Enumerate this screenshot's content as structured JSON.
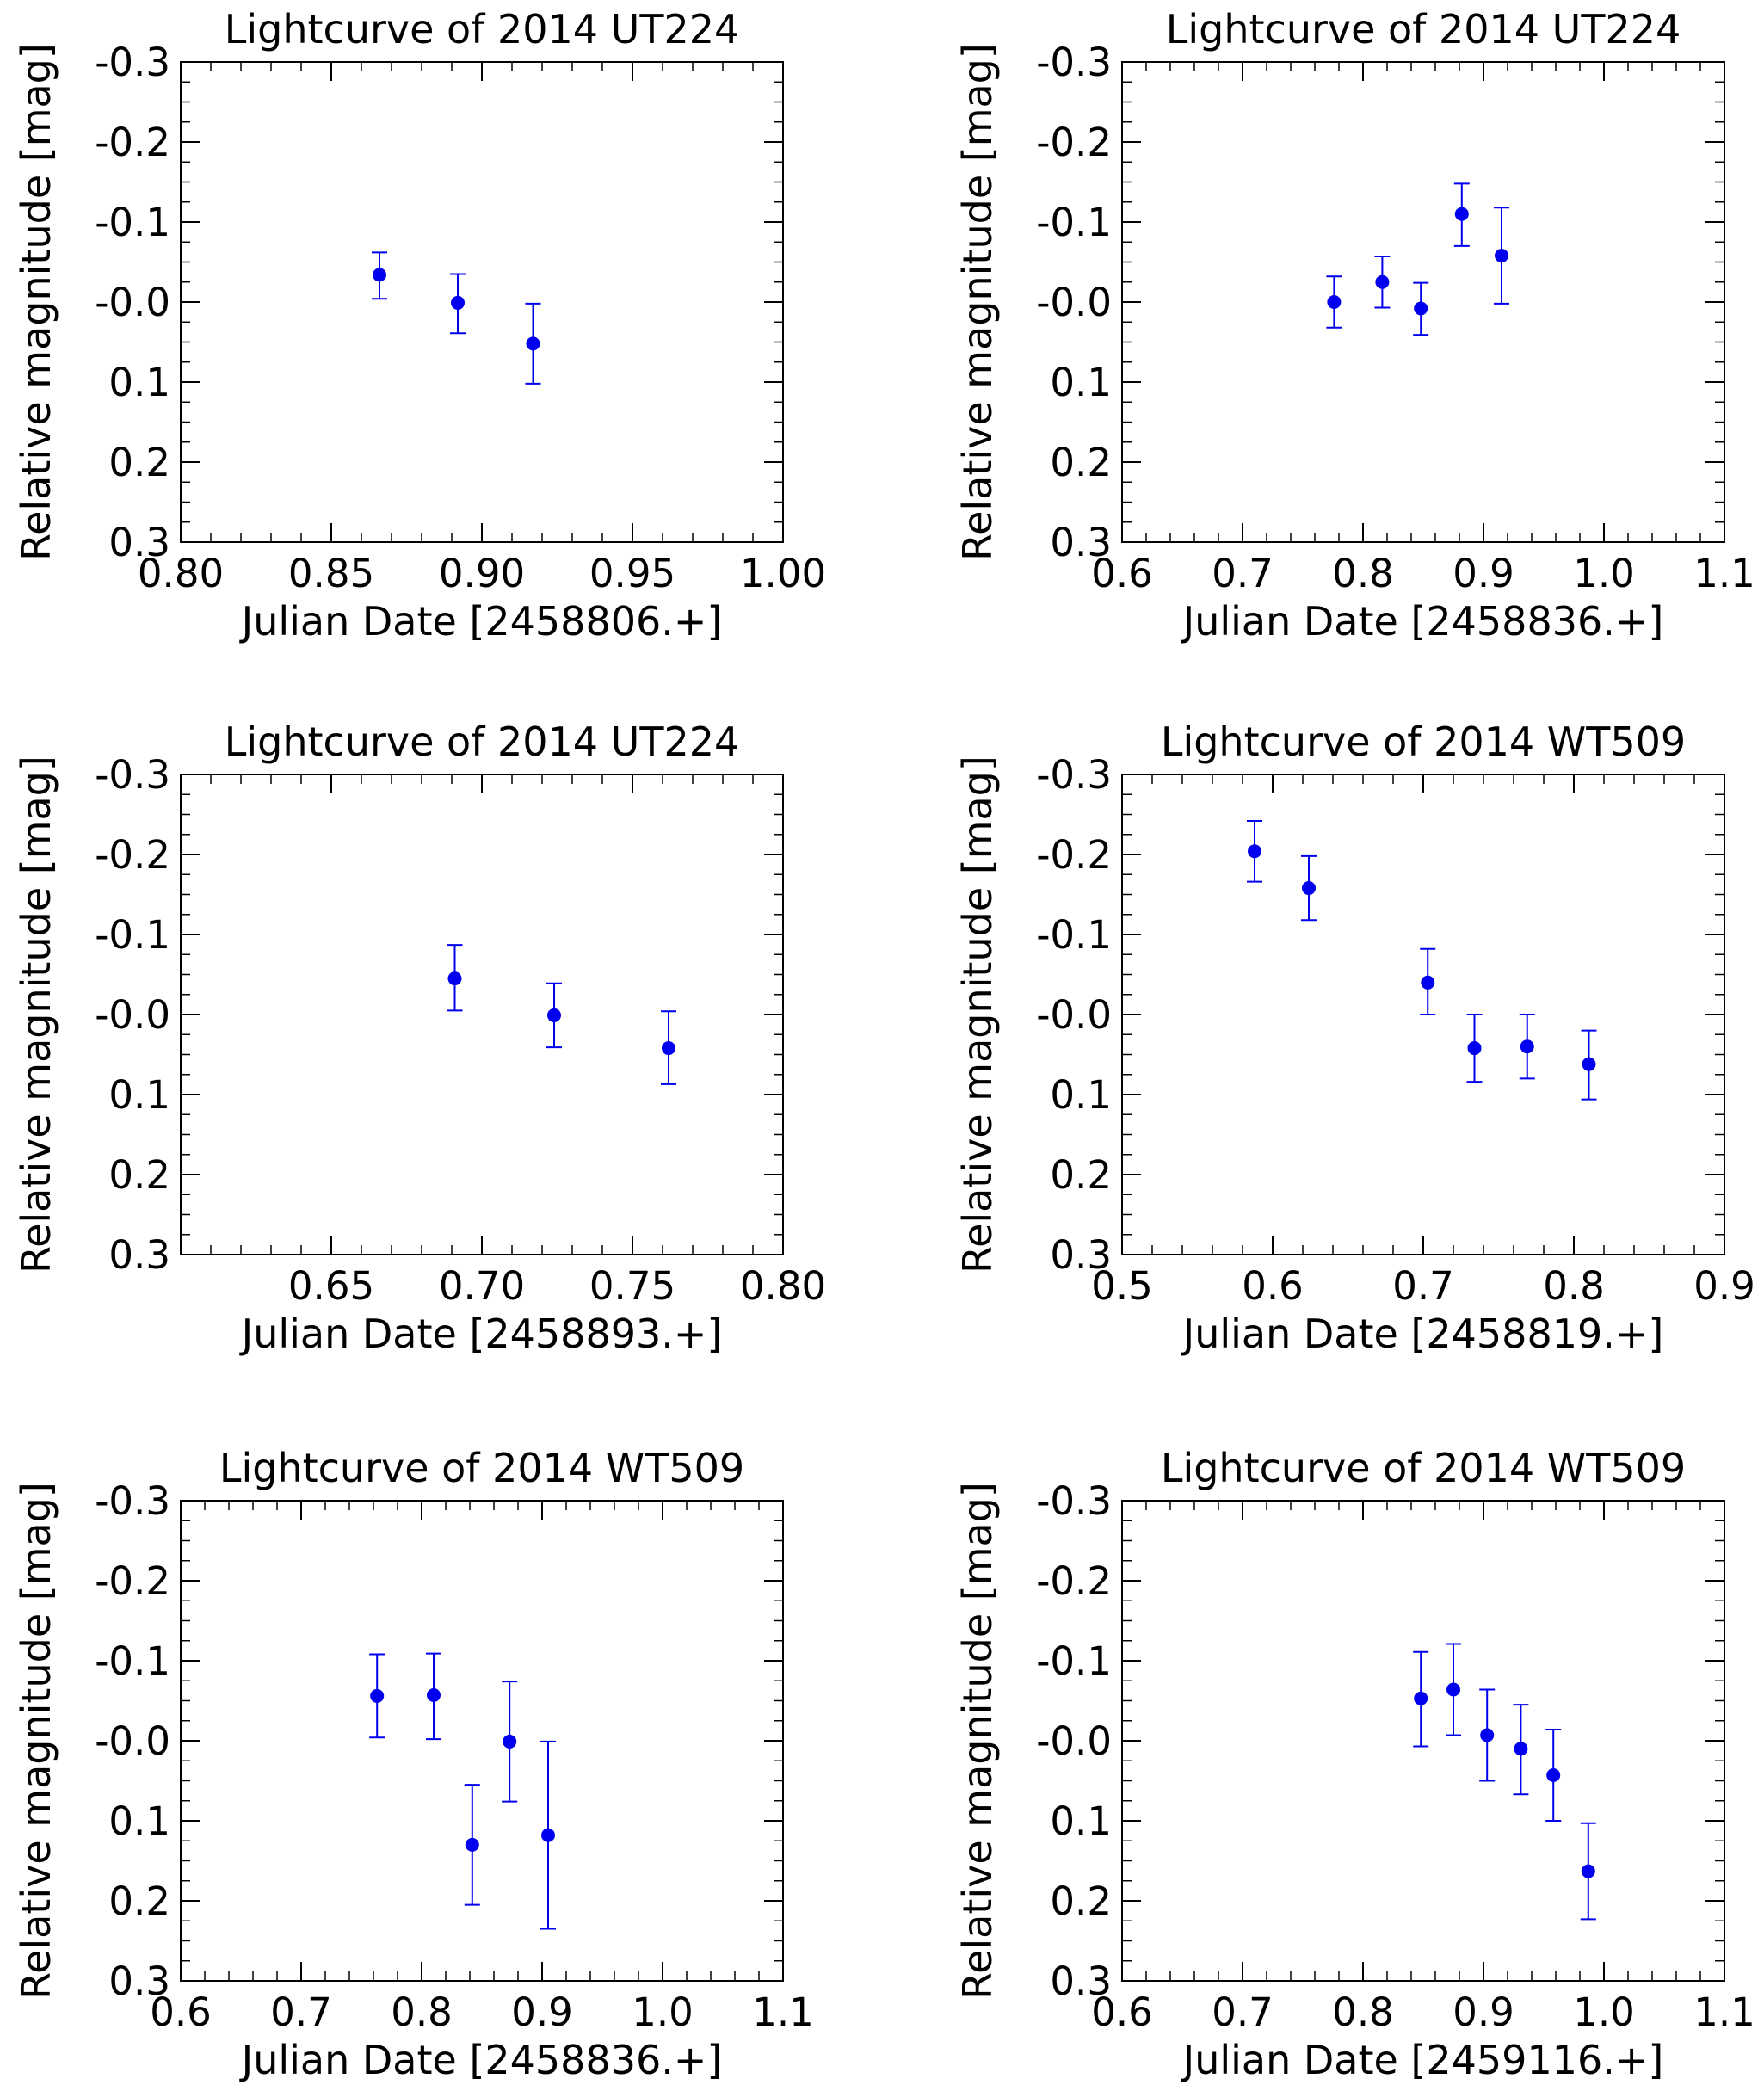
{
  "chart_data": [
    {
      "type": "scatter",
      "title": "Lightcurve of 2014 UT224",
      "xlabel": "Julian Date [2458806.+]",
      "ylabel": "Relative magnitude [mag]",
      "xlim": [
        0.8,
        1.0
      ],
      "ylim": [
        0.3,
        -0.3
      ],
      "x_ticks": [
        "0.80",
        "0.85",
        "0.90",
        "0.95",
        "1.00"
      ],
      "x_tick_values": [
        0.8,
        0.85,
        0.9,
        0.95,
        1.0
      ],
      "x_minor_step": 0.01,
      "y_ticks": [
        "-0.3",
        "-0.2",
        "-0.1",
        "-0.0",
        "0.1",
        "0.2",
        "0.3"
      ],
      "y_tick_values": [
        -0.3,
        -0.2,
        -0.1,
        0.0,
        0.1,
        0.2,
        0.3
      ],
      "series": [
        {
          "name": "data",
          "color": "#0000ee",
          "x": [
            0.866,
            0.892,
            0.917
          ],
          "y": [
            -0.034,
            0.001,
            0.052
          ],
          "err_low": [
            0.03,
            0.038,
            0.05
          ],
          "err_high": [
            0.028,
            0.036,
            0.05
          ]
        }
      ]
    },
    {
      "type": "scatter",
      "title": "Lightcurve of 2014 UT224",
      "xlabel": "Julian Date [2458836.+]",
      "ylabel": "Relative magnitude [mag]",
      "xlim": [
        0.6,
        1.1
      ],
      "ylim": [
        0.3,
        -0.3
      ],
      "x_ticks": [
        "0.6",
        "0.7",
        "0.8",
        "0.9",
        "1.0",
        "1.1"
      ],
      "x_tick_values": [
        0.6,
        0.7,
        0.8,
        0.9,
        1.0,
        1.1
      ],
      "x_minor_step": 0.02,
      "y_ticks": [
        "-0.3",
        "-0.2",
        "-0.1",
        "-0.0",
        "0.1",
        "0.2",
        "0.3"
      ],
      "y_tick_values": [
        -0.3,
        -0.2,
        -0.1,
        0.0,
        0.1,
        0.2,
        0.3
      ],
      "series": [
        {
          "name": "data",
          "color": "#0000ee",
          "x": [
            0.776,
            0.816,
            0.848,
            0.882,
            0.915
          ],
          "y": [
            0.0,
            -0.025,
            0.008,
            -0.11,
            -0.058
          ],
          "err_low": [
            0.032,
            0.032,
            0.033,
            0.04,
            0.06
          ],
          "err_high": [
            0.032,
            0.032,
            0.032,
            0.038,
            0.06
          ]
        }
      ]
    },
    {
      "type": "scatter",
      "title": "Lightcurve of 2014 UT224",
      "xlabel": "Julian Date [2458893.+]",
      "ylabel": "Relative magnitude [mag]",
      "xlim": [
        0.6,
        0.8
      ],
      "ylim": [
        0.3,
        -0.3
      ],
      "x_ticks": [
        "0.65",
        "0.70",
        "0.75",
        "0.80"
      ],
      "x_tick_values": [
        0.65,
        0.7,
        0.75,
        0.8
      ],
      "x_minor_step": 0.01,
      "y_ticks": [
        "-0.3",
        "-0.2",
        "-0.1",
        "-0.0",
        "0.1",
        "0.2",
        "0.3"
      ],
      "y_tick_values": [
        -0.3,
        -0.2,
        -0.1,
        0.0,
        0.1,
        0.2,
        0.3
      ],
      "series": [
        {
          "name": "data",
          "color": "#0000ee",
          "x": [
            0.691,
            0.724,
            0.762
          ],
          "y": [
            -0.045,
            0.001,
            0.042
          ],
          "err_low": [
            0.04,
            0.04,
            0.045
          ],
          "err_high": [
            0.042,
            0.04,
            0.046
          ]
        }
      ]
    },
    {
      "type": "scatter",
      "title": "Lightcurve of 2014 WT509",
      "xlabel": "Julian Date [2458819.+]",
      "ylabel": "Relative magnitude [mag]",
      "xlim": [
        0.5,
        0.9
      ],
      "ylim": [
        0.3,
        -0.3
      ],
      "x_ticks": [
        "0.5",
        "0.6",
        "0.7",
        "0.8",
        "0.9"
      ],
      "x_tick_values": [
        0.5,
        0.6,
        0.7,
        0.8,
        0.9
      ],
      "x_minor_step": 0.02,
      "y_ticks": [
        "-0.3",
        "-0.2",
        "-0.1",
        "-0.0",
        "0.1",
        "0.2",
        "0.3"
      ],
      "y_tick_values": [
        -0.3,
        -0.2,
        -0.1,
        0.0,
        0.1,
        0.2,
        0.3
      ],
      "series": [
        {
          "name": "data",
          "color": "#0000ee",
          "x": [
            0.588,
            0.624,
            0.703,
            0.734,
            0.769,
            0.81
          ],
          "y": [
            -0.204,
            -0.158,
            -0.04,
            0.042,
            0.04,
            0.062
          ],
          "err_low": [
            0.038,
            0.04,
            0.04,
            0.042,
            0.04,
            0.044
          ],
          "err_high": [
            0.038,
            0.04,
            0.042,
            0.042,
            0.04,
            0.042
          ]
        }
      ]
    },
    {
      "type": "scatter",
      "title": "Lightcurve of 2014 WT509",
      "xlabel": "Julian Date [2458836.+]",
      "ylabel": "Relative magnitude [mag]",
      "xlim": [
        0.6,
        1.1
      ],
      "ylim": [
        0.3,
        -0.3
      ],
      "x_ticks": [
        "0.6",
        "0.7",
        "0.8",
        "0.9",
        "1.0",
        "1.1"
      ],
      "x_tick_values": [
        0.6,
        0.7,
        0.8,
        0.9,
        1.0,
        1.1
      ],
      "x_minor_step": 0.02,
      "y_ticks": [
        "-0.3",
        "-0.2",
        "-0.1",
        "-0.0",
        "0.1",
        "0.2",
        "0.3"
      ],
      "y_tick_values": [
        -0.3,
        -0.2,
        -0.1,
        0.0,
        0.1,
        0.2,
        0.3
      ],
      "series": [
        {
          "name": "data",
          "color": "#0000ee",
          "x": [
            0.763,
            0.81,
            0.842,
            0.873,
            0.905
          ],
          "y": [
            -0.056,
            -0.057,
            0.13,
            0.001,
            0.118
          ],
          "err_low": [
            0.052,
            0.055,
            0.075,
            0.075,
            0.117
          ],
          "err_high": [
            0.052,
            0.052,
            0.075,
            0.075,
            0.117
          ]
        }
      ]
    },
    {
      "type": "scatter",
      "title": "Lightcurve of 2014 WT509",
      "xlabel": "Julian Date [2459116.+]",
      "ylabel": "Relative magnitude [mag]",
      "xlim": [
        0.6,
        1.1
      ],
      "ylim": [
        0.3,
        -0.3
      ],
      "x_ticks": [
        "0.6",
        "0.7",
        "0.8",
        "0.9",
        "1.0",
        "1.1"
      ],
      "x_tick_values": [
        0.6,
        0.7,
        0.8,
        0.9,
        1.0,
        1.1
      ],
      "x_minor_step": 0.02,
      "y_ticks": [
        "-0.3",
        "-0.2",
        "-0.1",
        "-0.0",
        "0.1",
        "0.2",
        "0.3"
      ],
      "y_tick_values": [
        -0.3,
        -0.2,
        -0.1,
        0.0,
        0.1,
        0.2,
        0.3
      ],
      "series": [
        {
          "name": "data",
          "color": "#0000ee",
          "x": [
            0.848,
            0.875,
            0.903,
            0.931,
            0.958,
            0.987
          ],
          "y": [
            -0.053,
            -0.064,
            -0.007,
            0.01,
            0.043,
            0.163
          ],
          "err_low": [
            0.06,
            0.057,
            0.057,
            0.057,
            0.057,
            0.06
          ],
          "err_high": [
            0.058,
            0.057,
            0.057,
            0.055,
            0.057,
            0.06
          ]
        }
      ]
    }
  ]
}
